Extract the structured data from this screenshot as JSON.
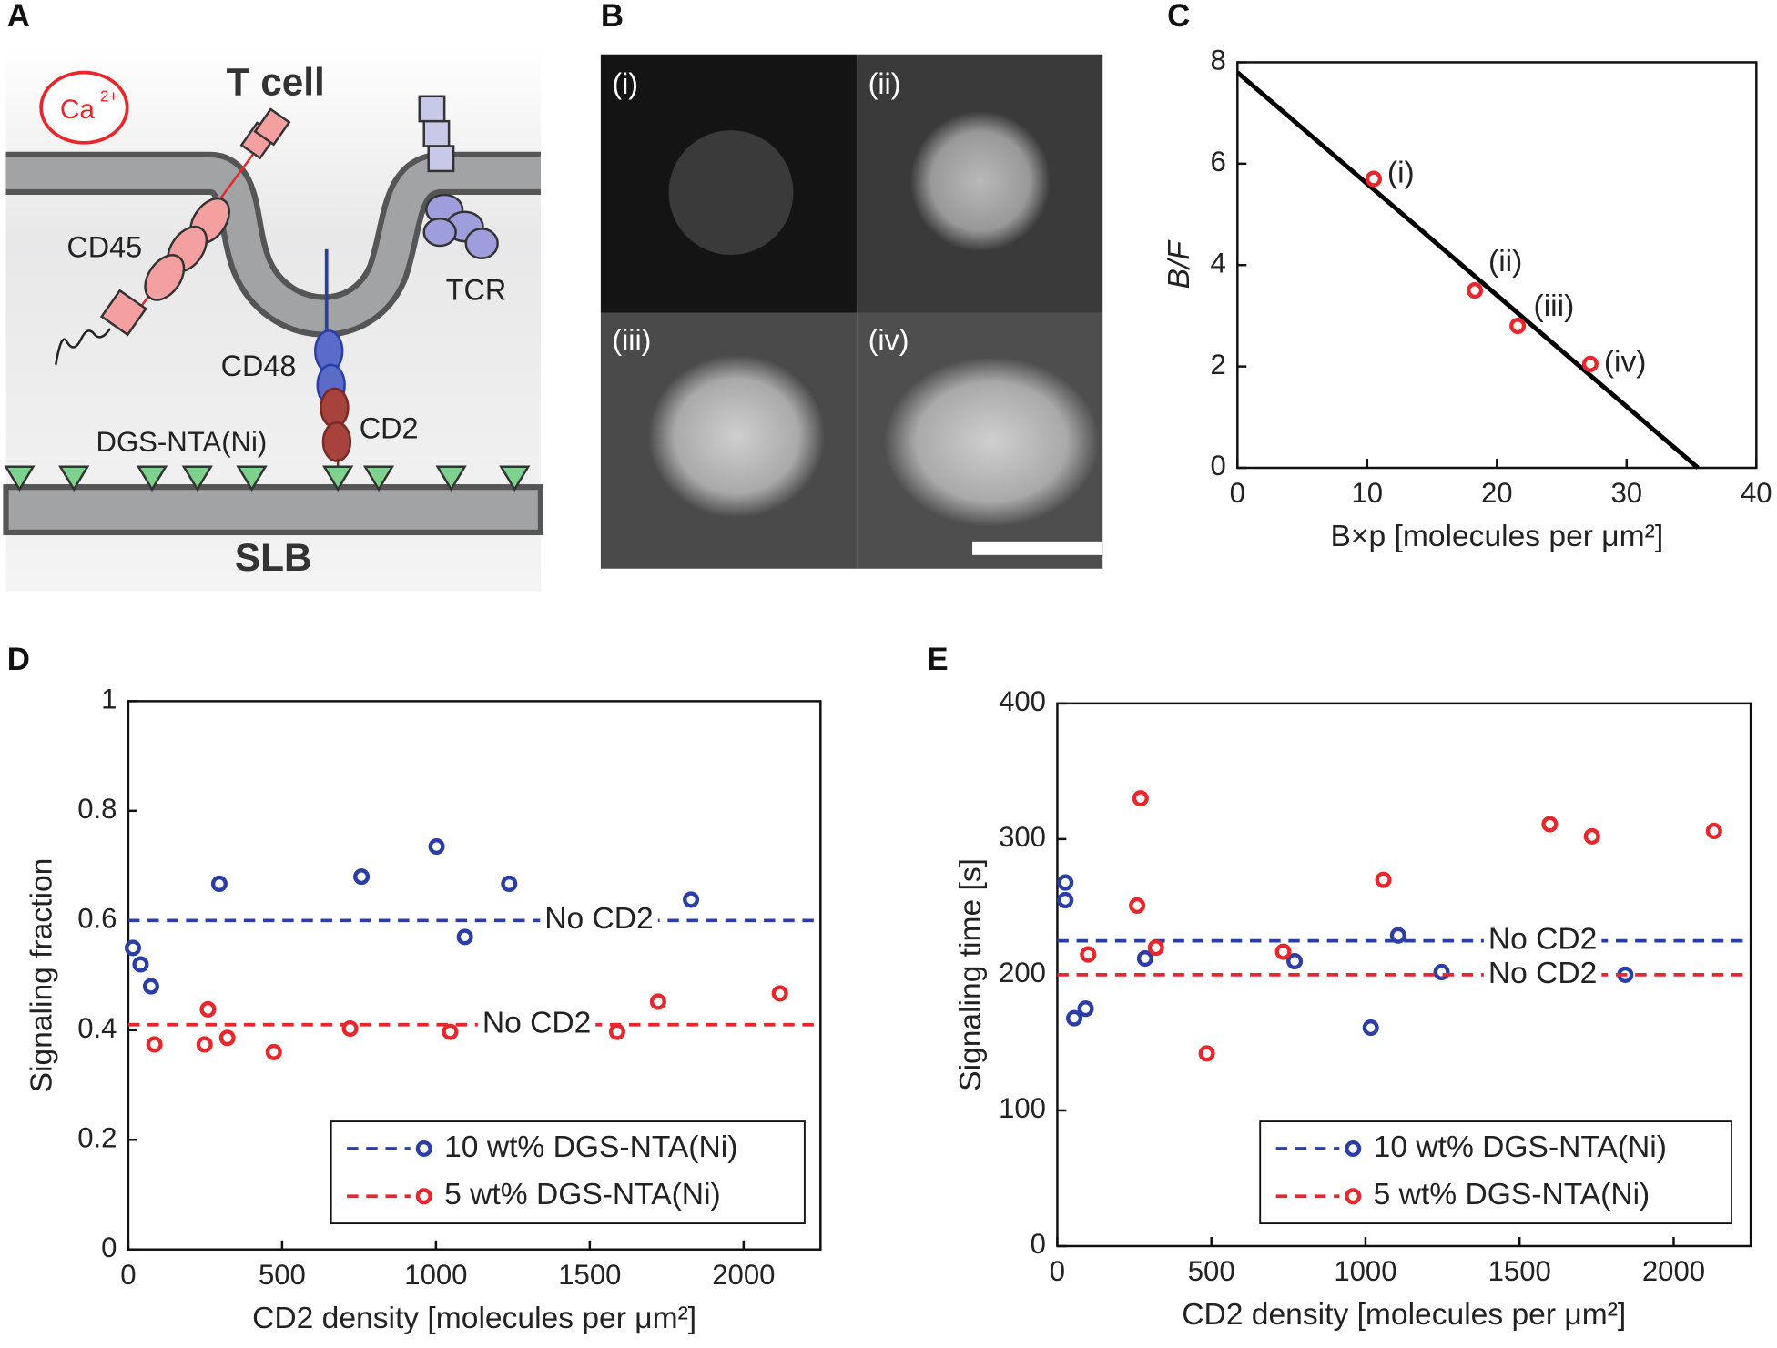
{
  "panels": [
    "A",
    "B",
    "C",
    "D",
    "E"
  ],
  "diagram": {
    "ion": "Ca",
    "ion_charge": "2+",
    "cell": "T cell",
    "cd45": "CD45",
    "tcr": "TCR",
    "cd48": "CD48",
    "cd2": "CD2",
    "lipid": "DGS-NTA(Ni)",
    "bilayer": "SLB"
  },
  "images": {
    "labels": [
      "(i)",
      "(ii)",
      "(iii)",
      "(iv)"
    ]
  },
  "chart_data": [
    {
      "type": "scatter",
      "xlabel": "B×p [molecules per μm²]",
      "ylabel": "B/F",
      "xlim": [
        0,
        40
      ],
      "xticks": [
        0,
        10,
        20,
        30,
        40
      ],
      "ylim": [
        0,
        8
      ],
      "yticks": [
        0,
        2,
        4,
        6,
        8
      ],
      "series": [
        {
          "color": "#e8262b",
          "x": [
            10.5,
            18.3,
            21.6,
            27.2
          ],
          "values": [
            5.7,
            3.5,
            2.8,
            2.05
          ],
          "point_labels": [
            "(i)",
            "(ii)",
            "(iii)",
            "(iv)"
          ]
        }
      ],
      "fit": {
        "color": "#000000",
        "x": [
          0,
          35.5
        ],
        "values": [
          7.8,
          0
        ]
      }
    },
    {
      "type": "scatter",
      "xlabel": "CD2 density [molecules per μm²]",
      "ylabel": "Signaling fraction",
      "xlim": [
        0,
        2250
      ],
      "xticks": [
        0,
        500,
        1000,
        1500,
        2000
      ],
      "ylim": [
        0,
        1
      ],
      "yticks": [
        0,
        0.2,
        0.4,
        0.6,
        0.8,
        1
      ],
      "legend": "lower right",
      "series": [
        {
          "name": "10 wt% DGS-NTA(Ni)",
          "color": "#2b3ea8",
          "x": [
            15,
            40,
            74,
            296,
            758,
            1002,
            1094,
            1238,
            1829
          ],
          "values": [
            0.55,
            0.52,
            0.48,
            0.667,
            0.68,
            0.735,
            0.57,
            0.667,
            0.638
          ],
          "reference": 0.6,
          "reference_label": "No CD2"
        },
        {
          "name": "5 wt% DGS-NTA(Ni)",
          "color": "#e8262b",
          "x": [
            85,
            259,
            248,
            322,
            473,
            721,
            1046,
            1589,
            1722,
            2118
          ],
          "values": [
            0.374,
            0.438,
            0.374,
            0.386,
            0.36,
            0.403,
            0.397,
            0.397,
            0.452,
            0.467
          ],
          "reference": 0.41,
          "reference_label": "No CD2"
        }
      ]
    },
    {
      "type": "scatter",
      "xlabel": "CD2 density [molecules per μm²]",
      "ylabel": "Signaling time [s]",
      "xlim": [
        0,
        2250
      ],
      "xticks": [
        0,
        500,
        1000,
        1500,
        2000
      ],
      "ylim": [
        0,
        400
      ],
      "yticks": [
        0,
        100,
        200,
        300,
        400
      ],
      "legend": "lower right",
      "series": [
        {
          "name": "10 wt% DGS-NTA(Ni)",
          "color": "#2b3ea8",
          "x": [
            26,
            26,
            55,
            92,
            285,
            770,
            1017,
            1106,
            1247,
            1843
          ],
          "values": [
            268,
            255,
            168,
            175,
            212,
            210,
            161,
            229,
            202,
            200
          ],
          "reference": 225,
          "reference_label": "No CD2"
        },
        {
          "name": "5 wt% DGS-NTA(Ni)",
          "color": "#e8262b",
          "x": [
            270,
            259,
            100,
            320,
            485,
            733,
            1058,
            1598,
            1735,
            2131
          ],
          "values": [
            330,
            251,
            215,
            220,
            142,
            217,
            270,
            311,
            302,
            306
          ],
          "reference": 200,
          "reference_label": "No CD2"
        }
      ]
    }
  ]
}
